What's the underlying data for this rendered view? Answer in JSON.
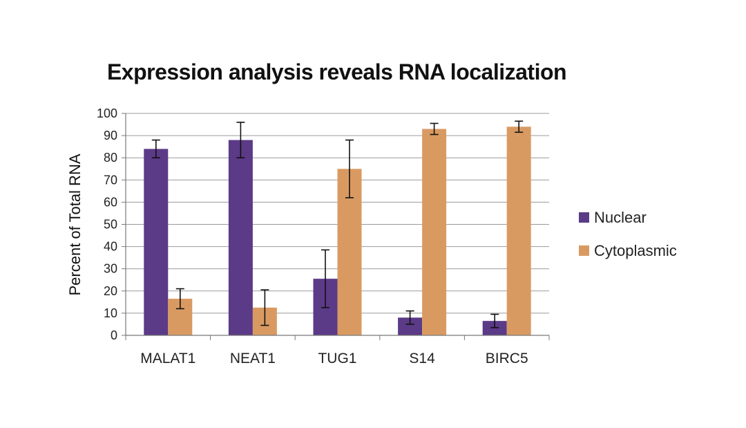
{
  "chart_data": {
    "type": "bar",
    "title": "Expression analysis reveals RNA localization",
    "xlabel": "",
    "ylabel": "Percent of Total RNA",
    "ylim": [
      0,
      100
    ],
    "yticks": [
      "0",
      "10",
      "20",
      "30",
      "40",
      "50",
      "60",
      "70",
      "80",
      "90",
      "100"
    ],
    "grid": true,
    "legend_position": "right",
    "categories": [
      "MALAT1",
      "NEAT1",
      "TUG1",
      "S14",
      "BIRC5"
    ],
    "series": [
      {
        "name": "Nuclear",
        "color": "#5b3a87",
        "values": [
          84,
          88,
          25.5,
          8,
          6.5
        ],
        "errors": [
          4,
          8,
          13,
          3,
          3
        ]
      },
      {
        "name": "Cytoplasmic",
        "color": "#d99a62",
        "values": [
          16.5,
          12.5,
          75,
          93,
          94
        ],
        "errors": [
          4.5,
          8,
          13,
          2.5,
          2.5
        ]
      }
    ]
  }
}
